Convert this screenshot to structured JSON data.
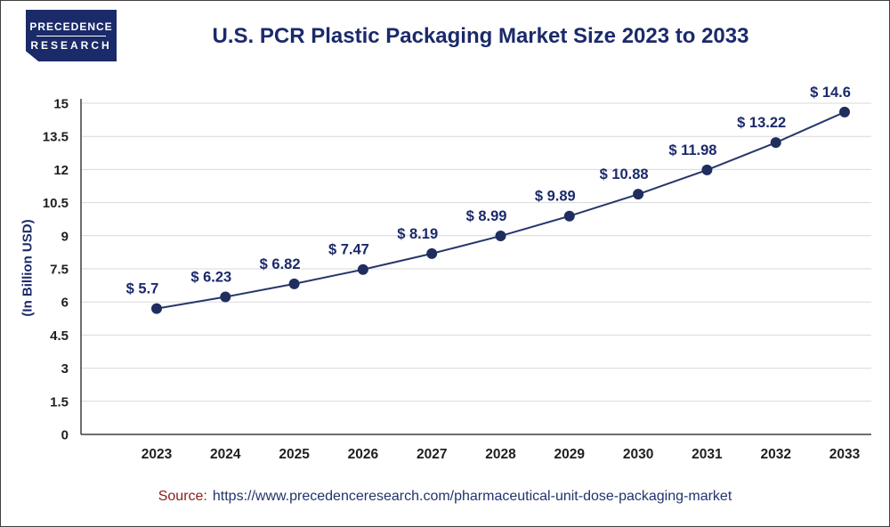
{
  "logo": {
    "line1": "PRECEDENCE",
    "line2": "RESEARCH",
    "background": "#1b2a68",
    "text_color": "#ffffff"
  },
  "header": {
    "title": "U.S. PCR Plastic Packaging Market Size 2023 to 2033",
    "color": "#1b2a6b"
  },
  "chart_data": {
    "type": "line",
    "title": "U.S. PCR Plastic Packaging Market Size 2023 to 2033",
    "categories": [
      "2023",
      "2024",
      "2025",
      "2026",
      "2027",
      "2028",
      "2029",
      "2030",
      "2031",
      "2032",
      "2033"
    ],
    "values": [
      5.7,
      6.23,
      6.82,
      7.47,
      8.19,
      8.99,
      9.89,
      10.88,
      11.98,
      13.22,
      14.6
    ],
    "point_labels": [
      "$ 5.7",
      "$ 6.23",
      "$ 6.82",
      "$ 7.47",
      "$ 8.19",
      "$ 8.99",
      "$ 9.89",
      "$ 10.88",
      "$ 11.98",
      "$ 13.22",
      "$ 14.6"
    ],
    "xlabel": "",
    "ylabel": "(In Billion USD)",
    "ylim": [
      0,
      15
    ],
    "yticks": [
      0,
      1.5,
      3,
      4.5,
      6,
      7.5,
      9,
      10.5,
      12,
      13.5,
      15
    ],
    "grid": "horizontal",
    "legend": "none",
    "line_color": "#25376b",
    "marker_color": "#1f2e5e",
    "gridline_color": "#d9d9d9",
    "axis_color": "#3f3f3f",
    "tick_label_color": "#1f1f1f",
    "point_label_color": "#1b2a6b"
  },
  "source": {
    "label": "Source:",
    "url": "https://www.precedenceresearch.com/pharmaceutical-unit-dose-packaging-market",
    "label_color": "#8e1b1b",
    "url_color": "#21336e"
  }
}
